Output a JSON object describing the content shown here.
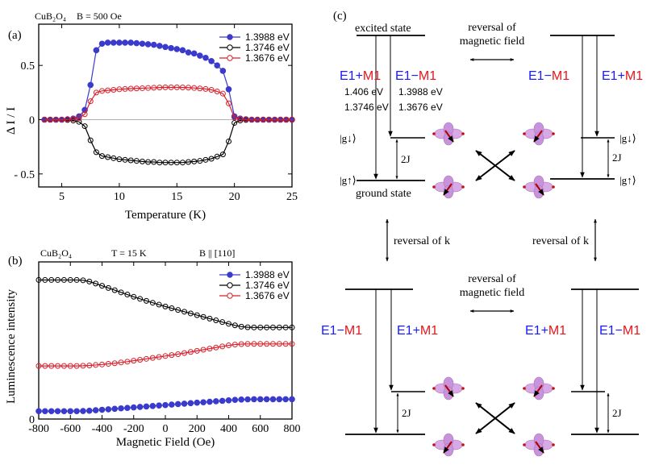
{
  "colors": {
    "s1": "#3a3acc",
    "s2": "#000000",
    "s3": "#d8202a",
    "blue": "#1a1aff",
    "red": "#e8141a",
    "orb": "#d9a8e6",
    "spin": "#b00000"
  },
  "panel_a": {
    "label": "(a)",
    "header_left": "CuB₂O₄",
    "header_right": "B  = 500 Oe"
  },
  "panel_b": {
    "label": "(b)",
    "header_left": "CuB₂O₄",
    "header_mid": "T = 15 K",
    "header_right": "B || [110]"
  },
  "panel_c": {
    "label": "(c)",
    "excited_state": "excited state",
    "ground_state": "ground state",
    "reversal_field": [
      "reversal of",
      "magnetic field"
    ],
    "reversal_k": "reversal of k",
    "e1": "E1",
    "plus": "+",
    "minus": "−",
    "m1": "M1",
    "energies_left": [
      "1.406 eV",
      "1.3746 eV"
    ],
    "energies_right": [
      "1.3988 eV",
      "1.3676 eV"
    ],
    "g_down": "|g↓⟩",
    "g_up": "|g↑⟩",
    "two_j": "2J"
  },
  "chart_data": [
    {
      "type": "line",
      "title": "",
      "xlabel": "Temperature (K)",
      "ylabel": "Δ I / I",
      "xlim": [
        3,
        25
      ],
      "ylim": [
        -0.62,
        0.88
      ],
      "xticks": [
        5,
        10,
        15,
        20,
        25
      ],
      "yticks": [
        0.5,
        0,
        -0.5
      ],
      "ytick_labels": [
        "0.5",
        "0",
        "- 0.5"
      ],
      "legend": "top-right",
      "grid": false,
      "x": [
        3.5,
        4,
        4.5,
        5,
        5.5,
        6,
        6.5,
        7,
        7.5,
        8,
        8.5,
        9,
        9.5,
        10,
        10.5,
        11,
        11.5,
        12,
        12.5,
        13,
        13.5,
        14,
        14.5,
        15,
        15.5,
        16,
        16.5,
        17,
        17.5,
        18,
        18.5,
        19,
        19.5,
        20,
        20.5,
        21,
        21.5,
        22,
        22.5,
        23,
        23.5,
        24,
        24.5,
        25
      ],
      "series": [
        {
          "name": "1.3988 eV",
          "marker": "filled",
          "values": [
            0,
            0,
            0,
            0,
            0.003,
            0.01,
            0.03,
            0.09,
            0.32,
            0.64,
            0.7,
            0.71,
            0.71,
            0.71,
            0.71,
            0.71,
            0.705,
            0.7,
            0.695,
            0.69,
            0.68,
            0.67,
            0.66,
            0.65,
            0.64,
            0.62,
            0.61,
            0.59,
            0.57,
            0.54,
            0.5,
            0.45,
            0.28,
            0.03,
            0.01,
            0.003,
            0,
            0,
            0,
            0,
            0,
            0,
            0,
            0
          ]
        },
        {
          "name": "1.3746 eV",
          "marker": "open",
          "values": [
            0,
            0,
            0,
            0,
            -0.003,
            -0.008,
            -0.02,
            -0.06,
            -0.19,
            -0.3,
            -0.335,
            -0.345,
            -0.355,
            -0.365,
            -0.37,
            -0.375,
            -0.38,
            -0.385,
            -0.39,
            -0.39,
            -0.395,
            -0.395,
            -0.395,
            -0.395,
            -0.395,
            -0.39,
            -0.385,
            -0.38,
            -0.37,
            -0.36,
            -0.34,
            -0.32,
            -0.2,
            -0.03,
            -0.008,
            -0.003,
            0,
            0,
            0,
            0,
            0,
            0,
            0,
            0
          ]
        },
        {
          "name": "1.3676 eV",
          "marker": "open",
          "values": [
            0,
            0,
            0,
            0,
            0.002,
            0.006,
            0.015,
            0.05,
            0.17,
            0.25,
            0.265,
            0.27,
            0.275,
            0.28,
            0.283,
            0.286,
            0.288,
            0.29,
            0.292,
            0.294,
            0.296,
            0.298,
            0.298,
            0.298,
            0.297,
            0.295,
            0.292,
            0.288,
            0.283,
            0.275,
            0.26,
            0.24,
            0.15,
            0.02,
            0.006,
            0.002,
            0,
            0,
            0,
            0,
            0,
            0,
            0,
            0
          ]
        }
      ]
    },
    {
      "type": "line",
      "title": "",
      "xlabel": "Magnetic Field (Oe)",
      "ylabel": "Luminescence  intensity",
      "xlim": [
        -800,
        800
      ],
      "ylim": [
        0,
        1
      ],
      "xticks": [
        -800,
        -600,
        -400,
        -200,
        0,
        200,
        400,
        600,
        800
      ],
      "yticks": [
        0
      ],
      "ytick_labels": [
        "0"
      ],
      "legend": "top-right",
      "grid": false,
      "x": [
        -800,
        -760,
        -720,
        -680,
        -640,
        -600,
        -560,
        -520,
        -480,
        -440,
        -400,
        -360,
        -320,
        -280,
        -240,
        -200,
        -160,
        -120,
        -80,
        -40,
        0,
        40,
        80,
        120,
        160,
        200,
        240,
        280,
        320,
        360,
        400,
        440,
        480,
        520,
        560,
        600,
        640,
        680,
        720,
        760,
        800
      ],
      "series": [
        {
          "name": "1.3988 eV",
          "marker": "filled",
          "values": [
            0.05,
            0.05,
            0.05,
            0.05,
            0.05,
            0.05,
            0.05,
            0.051,
            0.053,
            0.056,
            0.059,
            0.062,
            0.065,
            0.068,
            0.071,
            0.074,
            0.077,
            0.08,
            0.083,
            0.086,
            0.089,
            0.092,
            0.095,
            0.098,
            0.101,
            0.104,
            0.107,
            0.11,
            0.113,
            0.116,
            0.119,
            0.122,
            0.124,
            0.125,
            0.126,
            0.126,
            0.126,
            0.126,
            0.126,
            0.126,
            0.126
          ]
        },
        {
          "name": "1.3746 eV",
          "marker": "open",
          "values": [
            0.885,
            0.885,
            0.885,
            0.885,
            0.885,
            0.885,
            0.885,
            0.883,
            0.875,
            0.862,
            0.848,
            0.834,
            0.82,
            0.806,
            0.792,
            0.778,
            0.765,
            0.752,
            0.74,
            0.728,
            0.716,
            0.705,
            0.694,
            0.683,
            0.672,
            0.661,
            0.65,
            0.639,
            0.628,
            0.617,
            0.606,
            0.596,
            0.588,
            0.584,
            0.583,
            0.583,
            0.583,
            0.583,
            0.583,
            0.583,
            0.583
          ]
        },
        {
          "name": "1.3676 eV",
          "marker": "open",
          "values": [
            0.338,
            0.338,
            0.338,
            0.338,
            0.338,
            0.338,
            0.338,
            0.339,
            0.341,
            0.344,
            0.347,
            0.351,
            0.355,
            0.36,
            0.365,
            0.371,
            0.377,
            0.383,
            0.389,
            0.395,
            0.401,
            0.407,
            0.413,
            0.42,
            0.427,
            0.434,
            0.441,
            0.448,
            0.455,
            0.462,
            0.469,
            0.474,
            0.477,
            0.478,
            0.478,
            0.478,
            0.478,
            0.478,
            0.478,
            0.478,
            0.478
          ]
        }
      ]
    }
  ]
}
